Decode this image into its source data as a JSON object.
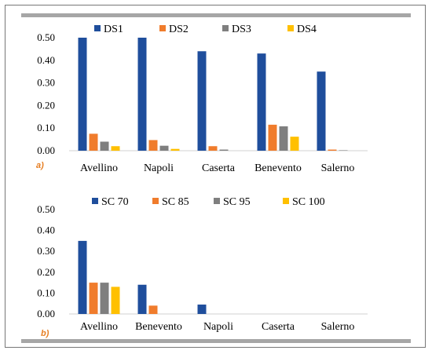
{
  "colors": {
    "series": [
      "#1f4e9c",
      "#f07c2c",
      "#7f7f7f",
      "#ffc000"
    ],
    "frame": "#777777",
    "bars_decor": "#a6a6a6"
  },
  "chart_data": [
    {
      "type": "bar",
      "panel_label": "a)",
      "categories": [
        "Avellino",
        "Napoli",
        "Caserta",
        "Benevento",
        "Salerno"
      ],
      "series": [
        {
          "name": "DS1",
          "values": [
            0.5,
            0.5,
            0.44,
            0.43,
            0.35
          ]
        },
        {
          "name": "DS2",
          "values": [
            0.075,
            0.047,
            0.02,
            0.115,
            0.005
          ]
        },
        {
          "name": "DS3",
          "values": [
            0.04,
            0.022,
            0.005,
            0.108,
            0.002
          ]
        },
        {
          "name": "DS4",
          "values": [
            0.02,
            0.008,
            0.0,
            0.062,
            0.0
          ]
        }
      ],
      "yticks": [
        "0.00",
        "0.10",
        "0.20",
        "0.30",
        "0.40",
        "0.50"
      ],
      "ylim": [
        0,
        0.5
      ],
      "legend_position": "top",
      "grid": false
    },
    {
      "type": "bar",
      "panel_label": "b)",
      "categories": [
        "Avellino",
        "Benevento",
        "Napoli",
        "Caserta",
        "Salerno"
      ],
      "series": [
        {
          "name": "SC 70",
          "values": [
            0.35,
            0.14,
            0.045,
            0.0,
            0.0
          ]
        },
        {
          "name": "SC 85",
          "values": [
            0.15,
            0.04,
            0.0,
            0.0,
            0.0
          ]
        },
        {
          "name": "SC 95",
          "values": [
            0.15,
            0.0,
            0.0,
            0.0,
            0.0
          ]
        },
        {
          "name": "SC 100",
          "values": [
            0.13,
            0.0,
            0.0,
            0.0,
            0.0
          ]
        }
      ],
      "yticks": [
        "0.00",
        "0.10",
        "0.20",
        "0.30",
        "0.40",
        "0.50"
      ],
      "ylim": [
        0,
        0.5
      ],
      "legend_position": "top",
      "grid": false
    }
  ]
}
